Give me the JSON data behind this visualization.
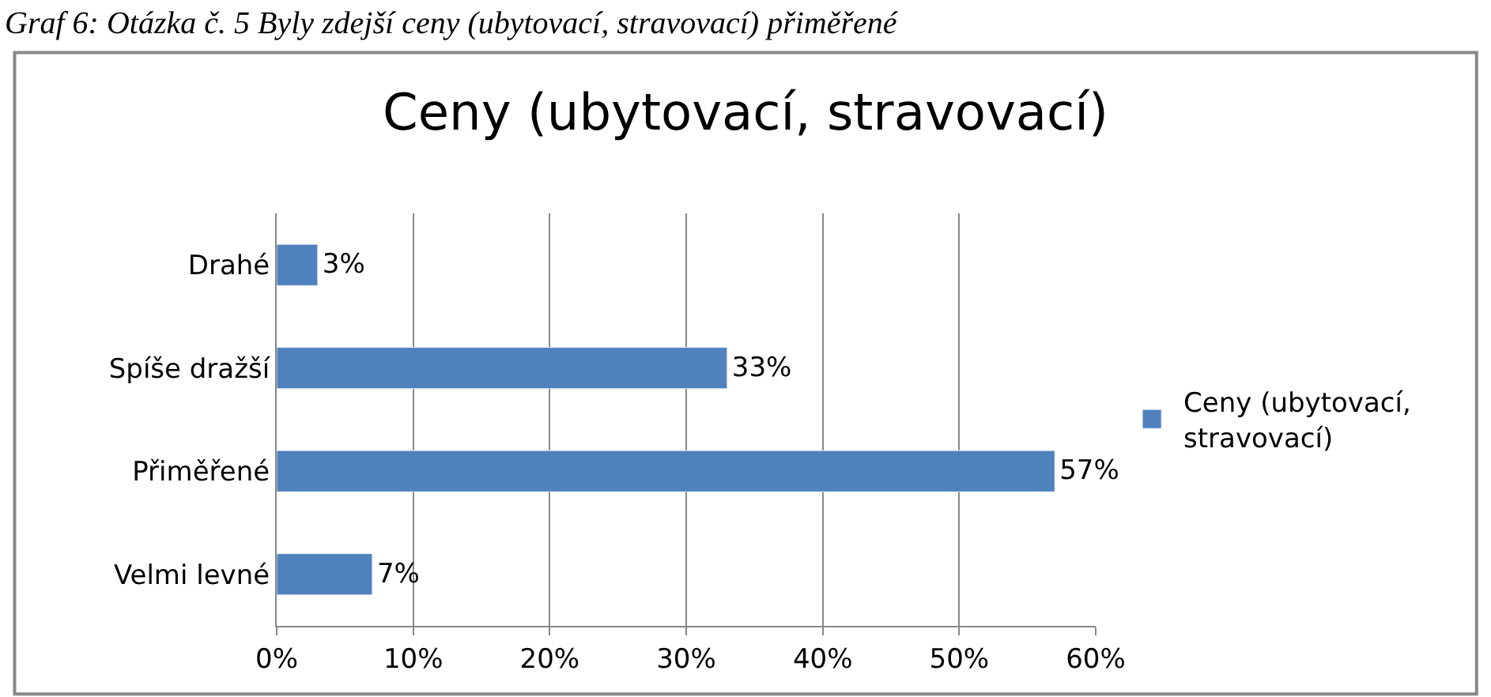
{
  "chart_data": {
    "type": "bar",
    "orientation": "horizontal",
    "title": "Ceny (ubytovací, stravovací)",
    "annotations": [
      "Graf 6: Otázka č. 5 Byly zdejší ceny (ubytovací, stravovací) přiměřené"
    ],
    "categories": [
      "Drahé",
      "Spíše dražší",
      "Přiměřené",
      "Velmi levné"
    ],
    "series": [
      {
        "name": "Ceny (ubytovací, stravovací)",
        "color": "#4f81bd",
        "values": [
          3,
          33,
          57,
          7
        ],
        "value_labels": [
          "3%",
          "33%",
          "57%",
          "7%"
        ]
      }
    ],
    "xlim": [
      0,
      60
    ],
    "xticks": [
      {
        "value": 0,
        "label": "0%"
      },
      {
        "value": 10,
        "label": "10%"
      },
      {
        "value": 20,
        "label": "20%"
      },
      {
        "value": 30,
        "label": "30%"
      },
      {
        "value": 40,
        "label": "40%"
      },
      {
        "value": 50,
        "label": "50%"
      },
      {
        "value": 60,
        "label": "60%"
      }
    ],
    "grid": "x",
    "legend": "right"
  }
}
